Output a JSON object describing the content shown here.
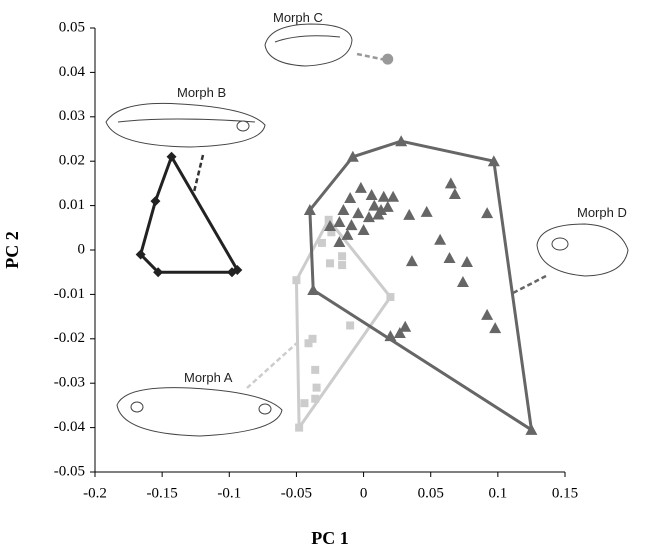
{
  "chart_data": {
    "type": "scatter",
    "xlabel": "PC 1",
    "ylabel": "PC 2",
    "xlim": [
      -0.2,
      0.15
    ],
    "xticks": [
      -0.2,
      -0.15,
      -0.1,
      -0.05,
      0,
      0.05,
      0.1,
      0.15
    ],
    "ylim": [
      -0.05,
      0.05
    ],
    "yticks": [
      -0.05,
      -0.04,
      -0.03,
      -0.02,
      -0.01,
      0,
      0.01,
      0.02,
      0.03,
      0.04,
      0.05
    ],
    "hulls": true,
    "series": [
      {
        "name": "Morph A",
        "color": "#cccccc",
        "marker": "square",
        "x": [
          -0.026,
          -0.024,
          -0.031,
          -0.025,
          -0.016,
          -0.016,
          -0.05,
          0.02,
          -0.01,
          -0.038,
          -0.041,
          -0.036,
          -0.035,
          -0.036,
          -0.044,
          -0.048
        ],
        "y": [
          0.0068,
          0.004,
          0.0016,
          -0.003,
          -0.0014,
          -0.0034,
          -0.0068,
          -0.0106,
          -0.017,
          -0.02,
          -0.021,
          -0.027,
          -0.031,
          -0.0335,
          -0.0345,
          -0.04
        ]
      },
      {
        "name": "Morph B",
        "color": "#222222",
        "marker": "diamond",
        "x": [
          -0.143,
          -0.155,
          -0.166,
          -0.153,
          -0.098,
          -0.094
        ],
        "y": [
          0.021,
          0.011,
          -0.001,
          -0.005,
          -0.005,
          -0.0045
        ]
      },
      {
        "name": "Morph C",
        "color": "#999999",
        "marker": "circle",
        "x": [
          0.018
        ],
        "y": [
          0.043
        ]
      },
      {
        "name": "Morph D",
        "color": "#666666",
        "marker": "triangle",
        "x": [
          -0.04,
          -0.008,
          0.028,
          0.097,
          0.125,
          0.02,
          -0.0375,
          -0.01,
          -0.002,
          0.006,
          0.015,
          0.022,
          0.008,
          0.013,
          0.018,
          0.011,
          -0.015,
          -0.004,
          0.004,
          -0.025,
          -0.018,
          -0.009,
          0,
          -0.018,
          -0.012,
          0.034,
          0.047,
          0.057,
          0.065,
          0.068,
          0.092,
          0.036,
          0.064,
          0.077,
          0.074,
          0.092,
          0.098,
          0.031,
          0.027
        ],
        "y": [
          0.009,
          0.021,
          0.0245,
          0.02,
          -0.0405,
          -0.0194,
          -0.009,
          0.0117,
          0.014,
          0.0124,
          0.012,
          0.012,
          0.01,
          0.009,
          0.0097,
          0.008,
          0.009,
          0.0083,
          0.0074,
          0.0054,
          0.0063,
          0.0056,
          0.0045,
          0.0018,
          0.0034,
          0.0079,
          0.0086,
          0.0023,
          0.015,
          0.0126,
          0.0083,
          -0.0025,
          -0.0018,
          -0.0027,
          -0.0072,
          -0.0146,
          -0.0176,
          -0.0173,
          -0.0187
        ]
      }
    ]
  }
}
